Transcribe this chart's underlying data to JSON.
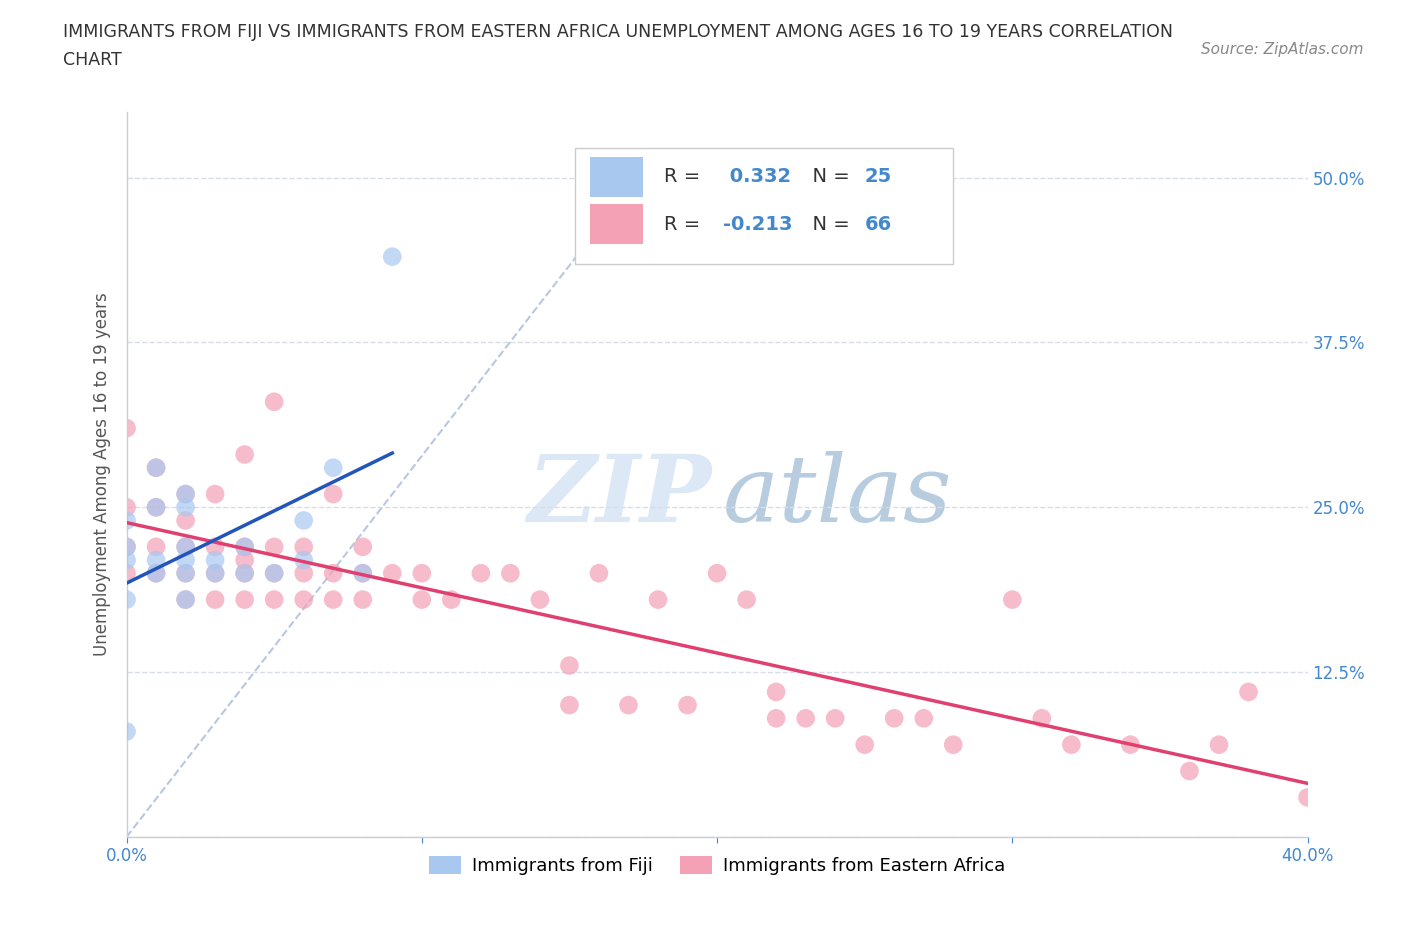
{
  "title": "IMMIGRANTS FROM FIJI VS IMMIGRANTS FROM EASTERN AFRICA UNEMPLOYMENT AMONG AGES 16 TO 19 YEARS CORRELATION\nCHART",
  "source_text": "Source: ZipAtlas.com",
  "ylabel": "Unemployment Among Ages 16 to 19 years",
  "legend_fiji": "Immigrants from Fiji",
  "legend_eastern_africa": "Immigrants from Eastern Africa",
  "R_fiji": 0.332,
  "N_fiji": 25,
  "R_eastern": -0.213,
  "N_eastern": 66,
  "fiji_color": "#a8c8f0",
  "eastern_color": "#f4a0b5",
  "fiji_line_color": "#2255bb",
  "eastern_line_color": "#e04070",
  "ref_line_color": "#b8c8e0",
  "xlim": [
    0.0,
    0.4
  ],
  "ylim": [
    0.0,
    0.55
  ],
  "xtick_positions": [
    0.0,
    0.1,
    0.2,
    0.3,
    0.4
  ],
  "xtick_labels": [
    "0.0%",
    "",
    "",
    "",
    "40.0%"
  ],
  "ytick_positions": [
    0.0,
    0.125,
    0.25,
    0.375,
    0.5
  ],
  "ytick_labels_right": [
    "",
    "12.5%",
    "25.0%",
    "37.5%",
    "50.0%"
  ],
  "fiji_x": [
    0.0,
    0.0,
    0.0,
    0.0,
    0.0,
    0.01,
    0.01,
    0.01,
    0.01,
    0.02,
    0.02,
    0.02,
    0.02,
    0.02,
    0.02,
    0.03,
    0.03,
    0.04,
    0.04,
    0.05,
    0.06,
    0.06,
    0.07,
    0.08,
    0.09
  ],
  "fiji_y": [
    0.08,
    0.18,
    0.21,
    0.22,
    0.24,
    0.2,
    0.21,
    0.25,
    0.28,
    0.18,
    0.2,
    0.21,
    0.22,
    0.25,
    0.26,
    0.2,
    0.21,
    0.2,
    0.22,
    0.2,
    0.21,
    0.24,
    0.28,
    0.2,
    0.44
  ],
  "eastern_x": [
    0.0,
    0.0,
    0.0,
    0.0,
    0.01,
    0.01,
    0.01,
    0.01,
    0.02,
    0.02,
    0.02,
    0.02,
    0.02,
    0.03,
    0.03,
    0.03,
    0.03,
    0.04,
    0.04,
    0.04,
    0.04,
    0.04,
    0.05,
    0.05,
    0.05,
    0.05,
    0.06,
    0.06,
    0.06,
    0.07,
    0.07,
    0.07,
    0.08,
    0.08,
    0.08,
    0.09,
    0.1,
    0.1,
    0.11,
    0.12,
    0.13,
    0.14,
    0.15,
    0.15,
    0.16,
    0.17,
    0.18,
    0.19,
    0.2,
    0.21,
    0.22,
    0.22,
    0.23,
    0.24,
    0.25,
    0.26,
    0.27,
    0.28,
    0.3,
    0.31,
    0.32,
    0.34,
    0.36,
    0.37,
    0.38,
    0.4
  ],
  "eastern_y": [
    0.2,
    0.22,
    0.25,
    0.31,
    0.2,
    0.22,
    0.25,
    0.28,
    0.18,
    0.2,
    0.22,
    0.24,
    0.26,
    0.18,
    0.2,
    0.22,
    0.26,
    0.18,
    0.2,
    0.21,
    0.22,
    0.29,
    0.18,
    0.2,
    0.22,
    0.33,
    0.18,
    0.2,
    0.22,
    0.18,
    0.2,
    0.26,
    0.18,
    0.2,
    0.22,
    0.2,
    0.18,
    0.2,
    0.18,
    0.2,
    0.2,
    0.18,
    0.1,
    0.13,
    0.2,
    0.1,
    0.18,
    0.1,
    0.2,
    0.18,
    0.09,
    0.11,
    0.09,
    0.09,
    0.07,
    0.09,
    0.09,
    0.07,
    0.18,
    0.09,
    0.07,
    0.07,
    0.05,
    0.07,
    0.11,
    0.03
  ],
  "background_color": "#ffffff",
  "grid_color": "#d8dde8",
  "axis_color": "#c8cdd8",
  "tick_label_color": "#4488cc",
  "watermark_zip_color": "#dce8f5",
  "watermark_atlas_color": "#b8ccdf"
}
